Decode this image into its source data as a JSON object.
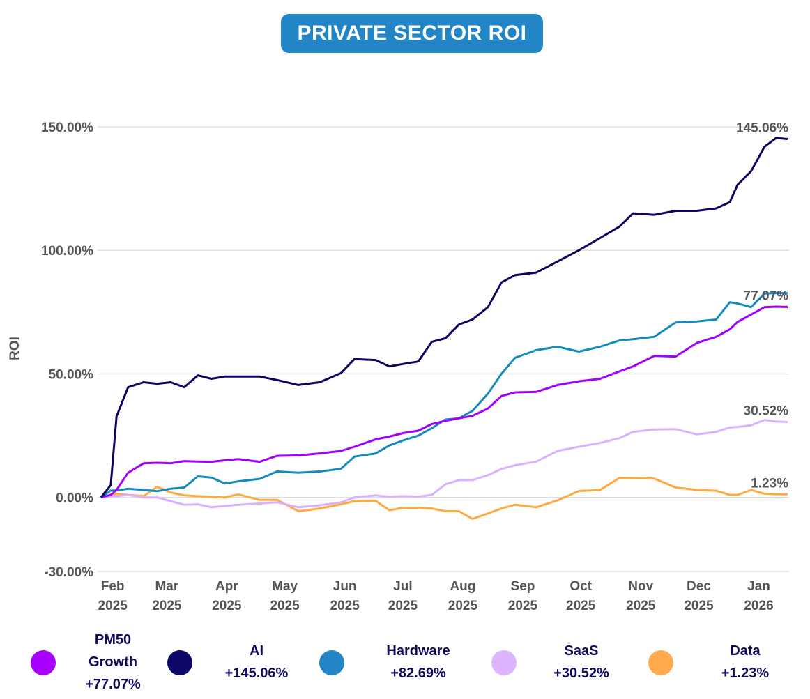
{
  "chart_data": {
    "type": "line",
    "title": "PRIVATE SECTOR ROI",
    "xlabel": "",
    "ylabel": "ROI",
    "ylim": [
      -30,
      150
    ],
    "yticks": [
      "150.00%",
      "100.00%",
      "50.00%",
      "0.00%",
      "-30.00%"
    ],
    "ytick_values": [
      150,
      100,
      50,
      0,
      -30
    ],
    "xticks": [
      {
        "date": "2025-02-01",
        "month": "Feb",
        "year": "2025"
      },
      {
        "date": "2025-03-01",
        "month": "Mar",
        "year": "2025"
      },
      {
        "date": "2025-04-01",
        "month": "Apr",
        "year": "2025"
      },
      {
        "date": "2025-05-01",
        "month": "May",
        "year": "2025"
      },
      {
        "date": "2025-06-01",
        "month": "Jun",
        "year": "2025"
      },
      {
        "date": "2025-07-01",
        "month": "Jul",
        "year": "2025"
      },
      {
        "date": "2025-08-01",
        "month": "Aug",
        "year": "2025"
      },
      {
        "date": "2025-09-01",
        "month": "Sep",
        "year": "2025"
      },
      {
        "date": "2025-10-01",
        "month": "Oct",
        "year": "2025"
      },
      {
        "date": "2025-11-01",
        "month": "Nov",
        "year": "2025"
      },
      {
        "date": "2025-12-01",
        "month": "Dec",
        "year": "2025"
      },
      {
        "date": "2026-01-01",
        "month": "Jan",
        "year": "2026"
      }
    ],
    "grid": true,
    "legend_placement": "bottom",
    "x": [
      "2025-01-26",
      "2025-01-31",
      "2025-02-03",
      "2025-02-09",
      "2025-02-17",
      "2025-02-24",
      "2025-03-03",
      "2025-03-10",
      "2025-03-17",
      "2025-03-24",
      "2025-03-31",
      "2025-04-07",
      "2025-04-18",
      "2025-04-27",
      "2025-05-08",
      "2025-05-19",
      "2025-05-30",
      "2025-06-06",
      "2025-06-17",
      "2025-06-24",
      "2025-07-01",
      "2025-07-09",
      "2025-07-16",
      "2025-07-23",
      "2025-07-30",
      "2025-08-06",
      "2025-08-14",
      "2025-08-21",
      "2025-08-28",
      "2025-09-08",
      "2025-09-19",
      "2025-09-30",
      "2025-10-11",
      "2025-10-21",
      "2025-10-28",
      "2025-11-08",
      "2025-11-19",
      "2025-11-30",
      "2025-12-10",
      "2025-12-17",
      "2025-12-21",
      "2025-12-28",
      "2026-01-04",
      "2026-01-10",
      "2026-01-16"
    ],
    "series": [
      {
        "name": "PM50 Growth",
        "legend_value": "+77.07%",
        "end_label": "77.07%",
        "color": "#a100ff",
        "dot_color": "#a800ff",
        "values": [
          0,
          1,
          3,
          10,
          13.8,
          14,
          13.8,
          14.7,
          14.5,
          14.4,
          15,
          15.5,
          14.4,
          16.8,
          17,
          17.8,
          18.8,
          20.5,
          23.5,
          24.6,
          26,
          27,
          29.7,
          31,
          32,
          33,
          36,
          41,
          42.5,
          42.7,
          45.5,
          47,
          48,
          51,
          53,
          57.3,
          57,
          62.5,
          65,
          68,
          71,
          74,
          77,
          77.2,
          77.07
        ]
      },
      {
        "name": "AI",
        "legend_value": "+145.06%",
        "end_label": "145.06%",
        "color": "#0b0560",
        "dot_color": "#0d0666",
        "values": [
          0,
          5,
          32.8,
          44.6,
          46.6,
          46,
          46.6,
          44.6,
          49.4,
          48,
          48.9,
          48.9,
          48.9,
          47.5,
          45.5,
          46.6,
          50.3,
          56,
          55.6,
          53,
          54,
          55,
          63,
          64.4,
          70,
          72,
          77,
          87,
          90,
          91,
          95.5,
          100,
          105,
          109.6,
          115,
          114.4,
          116,
          116,
          117,
          119.5,
          126.5,
          132,
          142,
          145.5,
          145.06
        ]
      },
      {
        "name": "Hardware",
        "legend_value": "+82.69%",
        "end_label": "",
        "color": "#138bbf",
        "dot_color": "#2286c6",
        "values": [
          0,
          2.8,
          2.8,
          3.5,
          3,
          2.5,
          3.5,
          4,
          8.5,
          8,
          5.6,
          6.5,
          7.5,
          10.5,
          10,
          10.5,
          11.6,
          16.5,
          17.8,
          21,
          23,
          25,
          28,
          31.5,
          32,
          35,
          42,
          50,
          56.5,
          59.6,
          61,
          59,
          61,
          63.5,
          64,
          65,
          70.8,
          71.2,
          72,
          79,
          78.5,
          77,
          82.5,
          82.7,
          82.69
        ]
      },
      {
        "name": "SaaS",
        "legend_value": "+30.52%",
        "end_label": "30.52%",
        "color": "#dab0ff",
        "dot_color": "#ddb4ff",
        "values": [
          0,
          0.5,
          0.5,
          1,
          0,
          0,
          -1.5,
          -3,
          -2.8,
          -4,
          -3.5,
          -3,
          -2.5,
          -2,
          -4,
          -3.2,
          -2,
          0,
          0.8,
          0.2,
          0.5,
          0.3,
          1,
          5.3,
          7,
          7,
          9,
          11.5,
          13,
          14.5,
          18.8,
          20.5,
          22,
          24,
          26.5,
          27.5,
          27.6,
          25.5,
          26.5,
          28.3,
          28.5,
          29.2,
          31.3,
          30.7,
          30.52
        ]
      },
      {
        "name": "Data",
        "legend_value": "+1.23%",
        "end_label": "1.23%",
        "color": "#ffa940",
        "dot_color": "#ffaa4d",
        "values": [
          0,
          0.8,
          1.5,
          1,
          0.5,
          4.3,
          2,
          0.8,
          0.5,
          0.2,
          0,
          1.2,
          -1,
          -1,
          -5.6,
          -4.5,
          -2.8,
          -1.5,
          -1.4,
          -5.2,
          -4.2,
          -4.2,
          -4.5,
          -5.6,
          -5.6,
          -8.7,
          -6.5,
          -4.5,
          -3,
          -4,
          -1.2,
          2.6,
          3,
          7.9,
          7.8,
          7.6,
          4,
          3,
          2.7,
          1,
          1,
          3,
          1.5,
          1.3,
          1.23
        ]
      }
    ]
  },
  "legend": [
    {
      "lines": [
        "PM50",
        "Growth",
        "+77.07%"
      ]
    },
    {
      "lines": [
        "AI",
        "+145.06%"
      ]
    },
    {
      "lines": [
        "Hardware",
        "+82.69%"
      ]
    },
    {
      "lines": [
        "SaaS",
        "+30.52%"
      ]
    },
    {
      "lines": [
        "Data",
        "+1.23%"
      ]
    }
  ]
}
